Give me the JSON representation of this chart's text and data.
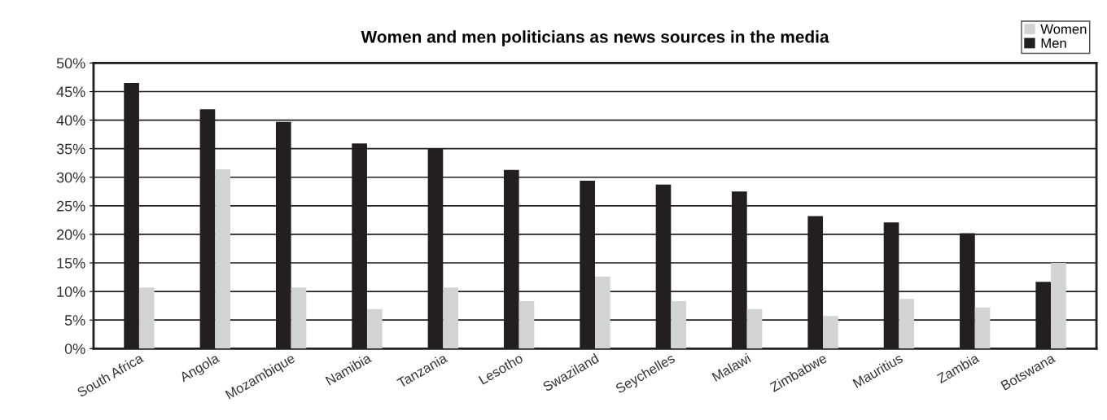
{
  "chart_data": {
    "type": "bar",
    "title": "Women and men politicians as news sources in the media",
    "categories": [
      "South Africa",
      "Angola",
      "Mozambique",
      "Namibia",
      "Tanzania",
      "Lesotho",
      "Swaziland",
      "Seychelles",
      "Malawi",
      "Zimbabwe",
      "Mauritius",
      "Zambia",
      "Botswana"
    ],
    "series": [
      {
        "name": "Men",
        "color": "#231f20",
        "values": [
          46.5,
          41.9,
          39.7,
          35.9,
          35.1,
          31.3,
          29.4,
          28.7,
          27.5,
          23.2,
          22.1,
          20.2,
          11.7
        ]
      },
      {
        "name": "Women",
        "color": "#d1d3d4",
        "values": [
          10.7,
          31.4,
          10.7,
          6.9,
          10.7,
          8.3,
          12.6,
          8.3,
          6.9,
          5.7,
          8.7,
          7.2,
          15.0
        ]
      }
    ],
    "ylim": [
      0,
      50
    ],
    "yticks": [
      {
        "value": 0,
        "label": "0%"
      },
      {
        "value": 5,
        "label": "5%"
      },
      {
        "value": 10,
        "label": "10%"
      },
      {
        "value": 15,
        "label": "15%"
      },
      {
        "value": 20,
        "label": "20%"
      },
      {
        "value": 25,
        "label": "25%"
      },
      {
        "value": 30,
        "label": "30%"
      },
      {
        "value": 35,
        "label": "35%"
      },
      {
        "value": 40,
        "label": "40%"
      },
      {
        "value": 45,
        "label": "45%"
      },
      {
        "value": 50,
        "label": "50%"
      }
    ],
    "grid": "y",
    "legend": "top right"
  }
}
